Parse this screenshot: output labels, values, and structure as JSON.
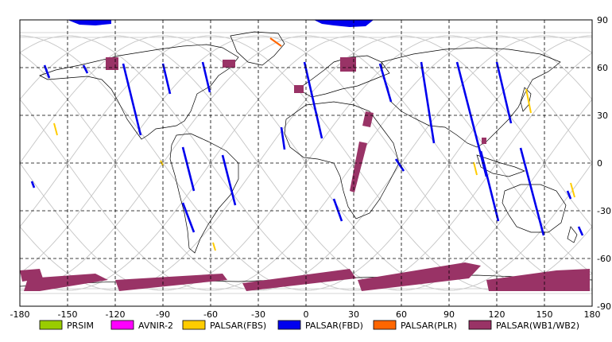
{
  "map": {
    "x_ticks": [
      "-180",
      "-150",
      "-120",
      "-90",
      "-60",
      "-30",
      "0",
      "30",
      "60",
      "90",
      "120",
      "150",
      "180"
    ],
    "y_ticks": [
      "90",
      "60",
      "30",
      "0",
      "-30",
      "-60",
      "-90"
    ],
    "xlim": [
      -180,
      180
    ],
    "ylim": [
      -90,
      90
    ],
    "grid": "dashed, every 30 degrees",
    "background": "#ffffff",
    "coastline_color": "#000000",
    "orbit_color": "#c8c8c8"
  },
  "legend": [
    {
      "label": "PRSIM",
      "color": "#99cc00"
    },
    {
      "label": "AVNIR-2",
      "color": "#ff00ff"
    },
    {
      "label": "PALSAR(FBS)",
      "color": "#ffcc00"
    },
    {
      "label": "PALSAR(FBD)",
      "color": "#0000ee"
    },
    {
      "label": "PALSAR(PLR)",
      "color": "#ff6600"
    },
    {
      "label": "PALSAR(WB1/WB2)",
      "color": "#993366"
    }
  ]
}
